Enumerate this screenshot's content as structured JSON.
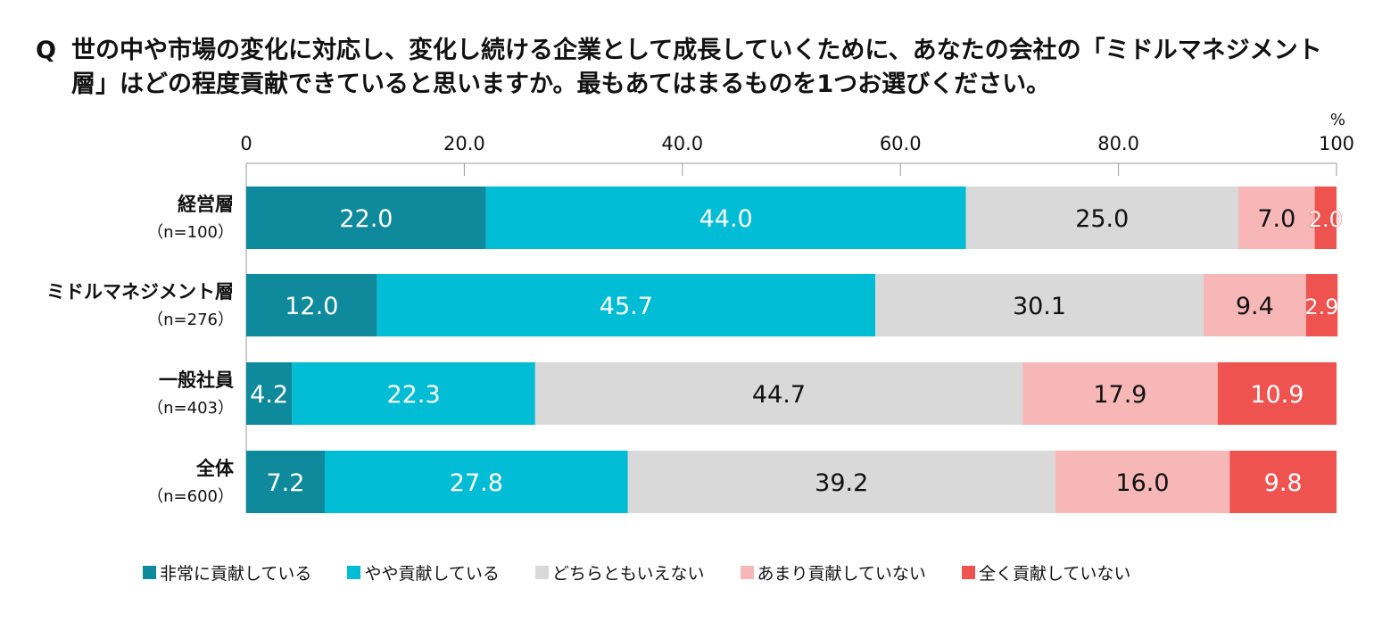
{
  "question": {
    "mark": "Q",
    "text": "世の中や市場の変化に対応し、変化し続ける企業として成長していくために、あなたの会社の「ミドルマネジメント層」はどの程度貢献できていると思いますか。最もあてはまるものを1つお選びください。"
  },
  "chart_data": {
    "type": "bar",
    "orientation": "horizontal",
    "stacked": true,
    "title": "",
    "unit": "%",
    "xlim": [
      0,
      100
    ],
    "ticks": [
      "0",
      "20.0",
      "40.0",
      "60.0",
      "80.0",
      "100"
    ],
    "tick_values": [
      0,
      20,
      40,
      60,
      80,
      100
    ],
    "categories": [
      {
        "name": "経営層",
        "n": "（n=100）"
      },
      {
        "name": "ミドルマネジメント層",
        "n": "（n=276）"
      },
      {
        "name": "一般社員",
        "n": "（n=403）"
      },
      {
        "name": "全体",
        "n": "（n=600）"
      }
    ],
    "series": [
      {
        "name": "非常に貢献している",
        "color": "#0e8a9c",
        "label_color": "#ffffff",
        "values": [
          22.0,
          12.0,
          4.2,
          7.2
        ],
        "labels": [
          "22.0",
          "12.0",
          "4.2",
          "7.2"
        ]
      },
      {
        "name": "やや貢献している",
        "color": "#00bcd4",
        "label_color": "#ffffff",
        "values": [
          44.0,
          45.7,
          22.3,
          27.8
        ],
        "labels": [
          "44.0",
          "45.7",
          "22.3",
          "27.8"
        ]
      },
      {
        "name": "どちらともいえない",
        "color": "#d9d9d9",
        "label_color": "#111111",
        "values": [
          25.0,
          30.1,
          44.7,
          39.2
        ],
        "labels": [
          "25.0",
          "30.1",
          "44.7",
          "39.2"
        ]
      },
      {
        "name": "あまり貢献していない",
        "color": "#f7b7b7",
        "label_color": "#111111",
        "values": [
          7.0,
          9.4,
          17.9,
          16.0
        ],
        "labels": [
          "7.0",
          "9.4",
          "17.9",
          "16.0"
        ]
      },
      {
        "name": "全く貢献していない",
        "color": "#ef5350",
        "label_color": "#ffffff",
        "values": [
          2.0,
          2.9,
          10.9,
          9.8
        ],
        "labels": [
          "2.0",
          "2.9",
          "10.9",
          "9.8"
        ]
      }
    ],
    "legend_position": "bottom"
  }
}
